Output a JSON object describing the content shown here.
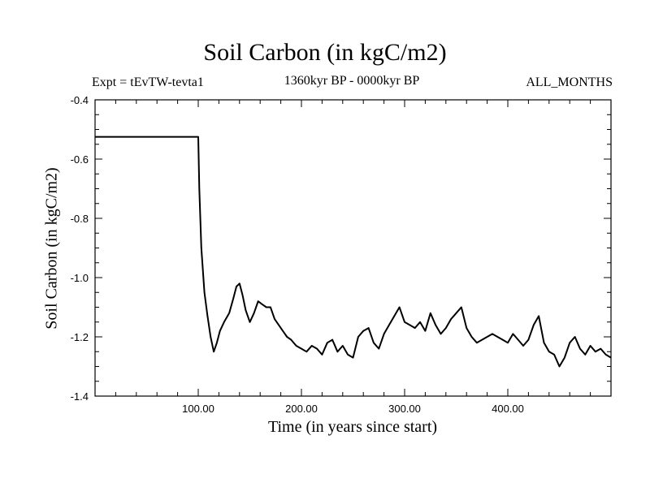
{
  "chart_data": {
    "type": "line",
    "title": "Soil Carbon (in kgC/m2)",
    "experiment_label": "Expt = tEvTW-tevta1",
    "period_label": "1360kyr BP - 0000kyr BP",
    "months_label": "ALL_MONTHS",
    "xlabel": "Time (in years since start)",
    "ylabel": "Soil Carbon (in kgC/m2)",
    "xlim": [
      0,
      500
    ],
    "ylim": [
      -1.4,
      -0.4
    ],
    "x_ticks": [
      100,
      200,
      300,
      400
    ],
    "x_tick_labels": [
      "100.00",
      "200.00",
      "300.00",
      "400.00"
    ],
    "y_ticks": [
      -0.4,
      -0.6,
      -0.8,
      -1.0,
      -1.2,
      -1.4
    ],
    "y_tick_labels": [
      "-0.4",
      "-0.6",
      "-0.8",
      "-1.0",
      "-1.2",
      "-1.4"
    ],
    "line_color": "#000000",
    "series": [
      {
        "name": "Soil Carbon",
        "x": [
          0,
          99,
          100,
          101,
          103,
          106,
          109,
          112,
          115,
          118,
          121,
          125,
          130,
          134,
          137,
          140,
          143,
          146,
          150,
          154,
          158,
          162,
          166,
          170,
          174,
          178,
          182,
          186,
          190,
          195,
          200,
          205,
          210,
          215,
          220,
          225,
          230,
          235,
          240,
          245,
          250,
          255,
          260,
          265,
          270,
          275,
          280,
          285,
          290,
          295,
          300,
          305,
          310,
          315,
          320,
          325,
          330,
          335,
          340,
          345,
          350,
          355,
          360,
          365,
          370,
          375,
          380,
          385,
          390,
          395,
          400,
          405,
          410,
          415,
          420,
          425,
          430,
          435,
          440,
          445,
          450,
          455,
          460,
          465,
          470,
          475,
          480,
          485,
          490,
          495,
          500
        ],
        "values": [
          -0.525,
          -0.525,
          -0.525,
          -0.7,
          -0.9,
          -1.05,
          -1.13,
          -1.2,
          -1.25,
          -1.22,
          -1.18,
          -1.15,
          -1.12,
          -1.07,
          -1.03,
          -1.02,
          -1.06,
          -1.11,
          -1.15,
          -1.12,
          -1.08,
          -1.09,
          -1.1,
          -1.1,
          -1.14,
          -1.16,
          -1.18,
          -1.2,
          -1.21,
          -1.23,
          -1.24,
          -1.25,
          -1.23,
          -1.24,
          -1.26,
          -1.22,
          -1.21,
          -1.25,
          -1.23,
          -1.26,
          -1.27,
          -1.2,
          -1.18,
          -1.17,
          -1.22,
          -1.24,
          -1.19,
          -1.16,
          -1.13,
          -1.1,
          -1.15,
          -1.16,
          -1.17,
          -1.15,
          -1.18,
          -1.12,
          -1.16,
          -1.19,
          -1.17,
          -1.14,
          -1.12,
          -1.1,
          -1.17,
          -1.2,
          -1.22,
          -1.21,
          -1.2,
          -1.19,
          -1.2,
          -1.21,
          -1.22,
          -1.19,
          -1.21,
          -1.23,
          -1.21,
          -1.16,
          -1.13,
          -1.22,
          -1.25,
          -1.26,
          -1.3,
          -1.27,
          -1.22,
          -1.2,
          -1.24,
          -1.26,
          -1.23,
          -1.25,
          -1.24,
          -1.26,
          -1.27
        ]
      }
    ]
  }
}
